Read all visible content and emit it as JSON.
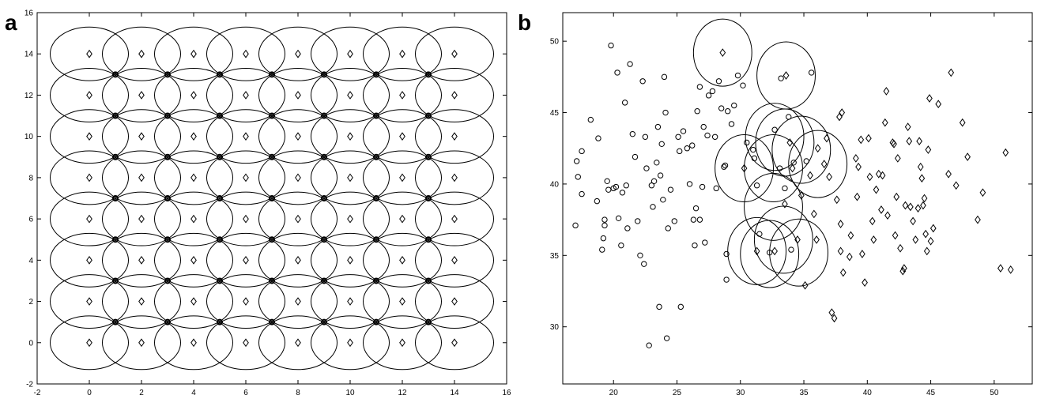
{
  "panels": {
    "a_label": "a",
    "b_label": "b"
  },
  "chart_data": [
    {
      "panel": "a",
      "type": "scatter",
      "title": "",
      "xlabel": "",
      "ylabel": "",
      "xlim": [
        -2,
        16
      ],
      "ylim": [
        -2,
        16
      ],
      "xticks": [
        -2,
        0,
        2,
        4,
        6,
        8,
        10,
        12,
        14,
        16
      ],
      "yticks": [
        -2,
        0,
        2,
        4,
        6,
        8,
        10,
        12,
        14,
        16
      ],
      "diamond_grid": {
        "x": [
          0,
          2,
          4,
          6,
          8,
          10,
          12,
          14
        ],
        "y": [
          0,
          2,
          4,
          6,
          8,
          10,
          12,
          14
        ]
      },
      "circle_points_grid": {
        "x": [
          1,
          3,
          5,
          7,
          9,
          11,
          13
        ],
        "y": [
          1,
          3,
          5,
          7,
          9,
          11,
          13
        ]
      },
      "coverage_circles": {
        "centers": "diamond_grid",
        "radius_x": 1.5,
        "radius_y": 1.3
      }
    },
    {
      "panel": "b",
      "type": "scatter",
      "title": "",
      "xlabel": "",
      "ylabel": "",
      "xlim": [
        16,
        53
      ],
      "ylim": [
        26,
        52
      ],
      "xticks": [
        20,
        25,
        30,
        35,
        40,
        45,
        50
      ],
      "yticks": [
        30,
        35,
        40,
        45,
        50
      ],
      "series": [
        {
          "marker": "circle",
          "points": [
            [
              17,
              37.1
            ],
            [
              17.1,
              41.6
            ],
            [
              17.2,
              40.5
            ],
            [
              17.5,
              42.3
            ],
            [
              17.5,
              39.3
            ],
            [
              18.2,
              44.5
            ],
            [
              18.7,
              38.8
            ],
            [
              18.8,
              43.2
            ],
            [
              19.1,
              35.4
            ],
            [
              19.2,
              36.2
            ],
            [
              19.3,
              37.5
            ],
            [
              19.3,
              37.1
            ],
            [
              19.5,
              40.2
            ],
            [
              19.6,
              39.6
            ],
            [
              19.8,
              49.7
            ],
            [
              20,
              39.7
            ],
            [
              20.2,
              39.8
            ],
            [
              20.3,
              47.8
            ],
            [
              20.4,
              37.6
            ],
            [
              20.6,
              35.7
            ],
            [
              20.7,
              39.4
            ],
            [
              20.9,
              45.7
            ],
            [
              21,
              39.9
            ],
            [
              21.1,
              36.9
            ],
            [
              21.3,
              48.4
            ],
            [
              21.5,
              43.5
            ],
            [
              21.7,
              41.9
            ],
            [
              21.9,
              37.4
            ],
            [
              22.1,
              35
            ],
            [
              22.4,
              34.4
            ],
            [
              22.3,
              47.2
            ],
            [
              22.5,
              43.3
            ],
            [
              22.6,
              41.1
            ],
            [
              22.8,
              28.7
            ],
            [
              23,
              39.9
            ],
            [
              23.1,
              38.4
            ],
            [
              23.2,
              40.2
            ],
            [
              23.4,
              41.5
            ],
            [
              23.5,
              44
            ],
            [
              23.6,
              31.4
            ],
            [
              23.7,
              40.6
            ],
            [
              23.8,
              42.8
            ],
            [
              23.9,
              38.9
            ],
            [
              24,
              47.5
            ],
            [
              24.1,
              45
            ],
            [
              24.2,
              29.2
            ],
            [
              24.3,
              36.9
            ],
            [
              24.5,
              39.6
            ],
            [
              24.8,
              37.4
            ],
            [
              25.1,
              43.3
            ],
            [
              25.2,
              42.3
            ],
            [
              25.3,
              31.4
            ],
            [
              25.5,
              43.7
            ],
            [
              25.8,
              42.5
            ],
            [
              26,
              40
            ],
            [
              26.2,
              42.7
            ],
            [
              26.3,
              37.5
            ],
            [
              26.4,
              35.7
            ],
            [
              26.5,
              38.3
            ],
            [
              26.6,
              45.1
            ],
            [
              26.8,
              37.5
            ],
            [
              26.8,
              46.8
            ],
            [
              27,
              39.8
            ],
            [
              27.1,
              44
            ],
            [
              27.2,
              35.9
            ],
            [
              27.4,
              43.4
            ],
            [
              27.5,
              46.2
            ],
            [
              27.8,
              46.5
            ],
            [
              28,
              43.3
            ],
            [
              28.1,
              39.7
            ],
            [
              28.3,
              47.2
            ],
            [
              28.5,
              45.3
            ],
            [
              28.7,
              41.2
            ],
            [
              28.8,
              41.3
            ],
            [
              28.9,
              35.1
            ],
            [
              28.9,
              33.3
            ],
            [
              29,
              45.1
            ],
            [
              29.3,
              44.2
            ],
            [
              29.5,
              45.5
            ],
            [
              29.8,
              47.6
            ],
            [
              30.2,
              46.9
            ],
            [
              30.5,
              42.9
            ],
            [
              31,
              42.4
            ],
            [
              31.1,
              41.8
            ],
            [
              31.3,
              39.9
            ],
            [
              31.5,
              36.5
            ],
            [
              32.3,
              35.2
            ],
            [
              33.2,
              47.4
            ],
            [
              33.8,
              44.7
            ],
            [
              34,
              35.4
            ],
            [
              34.2,
              41.5
            ],
            [
              33.1,
              41.1
            ],
            [
              32.7,
              43.8
            ],
            [
              33.5,
              39.7
            ],
            [
              35.2,
              41.6
            ],
            [
              35.6,
              47.8
            ]
          ]
        },
        {
          "marker": "diamond",
          "points": [
            [
              28.6,
              49.2
            ],
            [
              30.3,
              41.1
            ],
            [
              31.3,
              35.3
            ],
            [
              32.7,
              35.3
            ],
            [
              33.6,
              47.6
            ],
            [
              33.5,
              38.6
            ],
            [
              33.9,
              42.9
            ],
            [
              34.1,
              41.1
            ],
            [
              34.5,
              36.1
            ],
            [
              34.8,
              39.2
            ],
            [
              35.1,
              32.9
            ],
            [
              35.5,
              40.6
            ],
            [
              35.8,
              37.9
            ],
            [
              36,
              36.1
            ],
            [
              36.1,
              42.5
            ],
            [
              36.6,
              41.4
            ],
            [
              36.8,
              43.2
            ],
            [
              37,
              40.5
            ],
            [
              37.2,
              31
            ],
            [
              37.4,
              30.6
            ],
            [
              37.6,
              38.9
            ],
            [
              37.8,
              44.7
            ],
            [
              37.9,
              37.2
            ],
            [
              37.9,
              35.3
            ],
            [
              38,
              45
            ],
            [
              38.1,
              33.8
            ],
            [
              38.6,
              34.9
            ],
            [
              38.7,
              36.4
            ],
            [
              39.1,
              41.8
            ],
            [
              39.2,
              39.1
            ],
            [
              39.3,
              41.2
            ],
            [
              39.5,
              43.1
            ],
            [
              39.6,
              35.1
            ],
            [
              39.8,
              33.1
            ],
            [
              40.1,
              43.2
            ],
            [
              40.2,
              40.5
            ],
            [
              40.4,
              37.4
            ],
            [
              40.5,
              36.1
            ],
            [
              40.7,
              39.6
            ],
            [
              40.9,
              40.7
            ],
            [
              41.1,
              38.2
            ],
            [
              41.2,
              40.6
            ],
            [
              41.4,
              44.3
            ],
            [
              41.5,
              46.5
            ],
            [
              41.6,
              37.8
            ],
            [
              42,
              42.9
            ],
            [
              42.1,
              42.8
            ],
            [
              42.2,
              36.4
            ],
            [
              42.3,
              39.1
            ],
            [
              42.4,
              41.8
            ],
            [
              42.6,
              35.5
            ],
            [
              42.8,
              33.9
            ],
            [
              42.9,
              34.1
            ],
            [
              43,
              38.5
            ],
            [
              43.2,
              44
            ],
            [
              43.3,
              43
            ],
            [
              43.4,
              38.4
            ],
            [
              43.6,
              37.4
            ],
            [
              43.8,
              36.1
            ],
            [
              44,
              38.3
            ],
            [
              44.1,
              43
            ],
            [
              44.2,
              41.2
            ],
            [
              44.3,
              40.4
            ],
            [
              44.4,
              38.5
            ],
            [
              44.5,
              39
            ],
            [
              44.6,
              36.5
            ],
            [
              44.7,
              35.3
            ],
            [
              44.8,
              42.4
            ],
            [
              44.9,
              46
            ],
            [
              45,
              36
            ],
            [
              45.2,
              36.9
            ],
            [
              45.6,
              45.6
            ],
            [
              46.4,
              40.7
            ],
            [
              46.6,
              47.8
            ],
            [
              47,
              39.9
            ],
            [
              47.5,
              44.3
            ],
            [
              47.9,
              41.9
            ],
            [
              48.7,
              37.5
            ],
            [
              49.1,
              39.4
            ],
            [
              50.5,
              34.1
            ],
            [
              50.9,
              42.2
            ],
            [
              51.3,
              34
            ]
          ]
        }
      ],
      "coverage_circles": {
        "radius_x": 2.3,
        "radius_y": 2.35,
        "centers": [
          [
            28.6,
            49.2
          ],
          [
            33.6,
            47.6
          ],
          [
            32.7,
            43.3
          ],
          [
            33.5,
            42.9
          ],
          [
            34.8,
            42.4
          ],
          [
            36.1,
            41.4
          ],
          [
            30.3,
            41.1
          ],
          [
            32.6,
            41.1
          ],
          [
            32.6,
            38.4
          ],
          [
            33.4,
            36.1
          ],
          [
            31.3,
            35.3
          ],
          [
            32.3,
            35.1
          ],
          [
            34.6,
            35.2
          ]
        ]
      }
    }
  ]
}
